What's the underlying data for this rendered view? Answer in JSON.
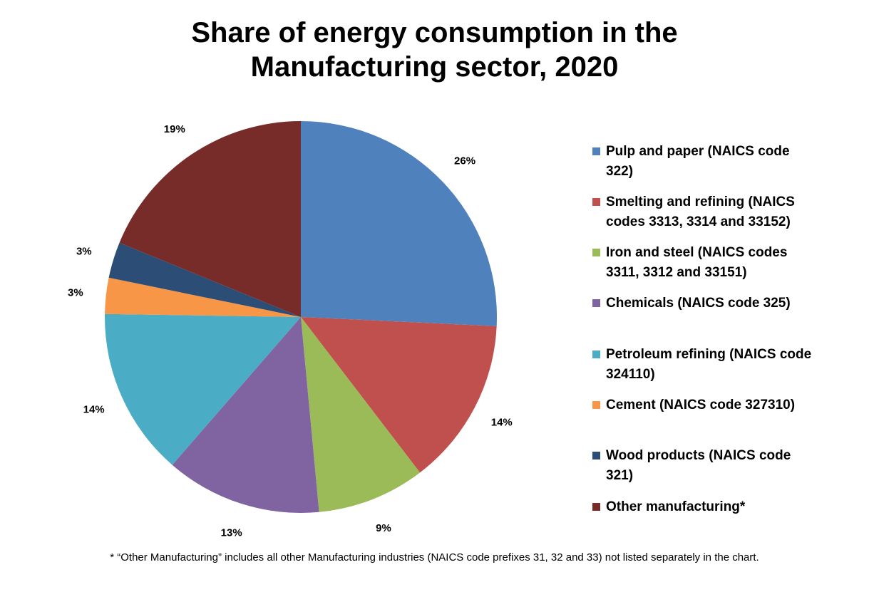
{
  "chart_data": {
    "type": "pie",
    "title": [
      "Share of energy consumption in the",
      "Manufacturing sector, 2020"
    ],
    "categories": [
      "Pulp and paper (NAICS code 322)",
      "Smelting and refining (NAICS codes 3313, 3314 and 33152)",
      "Iron and steel (NAICS codes 3311, 3312 and 33151)",
      "Chemicals (NAICS code 325)",
      "Petroleum refining (NAICS code 324110)",
      "Cement (NAICS code 327310)",
      "Wood products (NAICS code 321)",
      "Other manufacturing*"
    ],
    "values": [
      26,
      14,
      9,
      13,
      14,
      3,
      3,
      19
    ],
    "data_labels": [
      "26%",
      "14%",
      "9%",
      "13%",
      "14%",
      "3%",
      "3%",
      "19%"
    ],
    "colors": [
      "#4F81BD",
      "#C0504D",
      "#9BBB59",
      "#8064A2",
      "#4BACC6",
      "#F79646",
      "#2C4D75",
      "#772C2A"
    ],
    "legend_position": "right",
    "start_angle_deg": 0,
    "direction": "clockwise"
  },
  "legend": [
    {
      "lines": [
        "Pulp and paper (NAICS code",
        "322)"
      ]
    },
    {
      "lines": [
        "Smelting and refining (NAICS",
        "codes 3313, 3314 and 33152)"
      ]
    },
    {
      "lines": [
        "Iron and steel (NAICS codes",
        "3311, 3312 and 33151)"
      ]
    },
    {
      "lines": [
        "Chemicals (NAICS code 325)"
      ]
    },
    {
      "lines": [
        "Petroleum refining (NAICS code",
        "324110)"
      ]
    },
    {
      "lines": [
        "Cement (NAICS code 327310)"
      ]
    },
    {
      "lines": [
        "Wood products (NAICS code",
        "321)"
      ]
    },
    {
      "lines": [
        "Other manufacturing*"
      ]
    }
  ],
  "footnote": "* “Other Manufacturing” includes all other Manufacturing industries (NAICS code prefixes 31, 32 and 33) not listed separately in the chart."
}
